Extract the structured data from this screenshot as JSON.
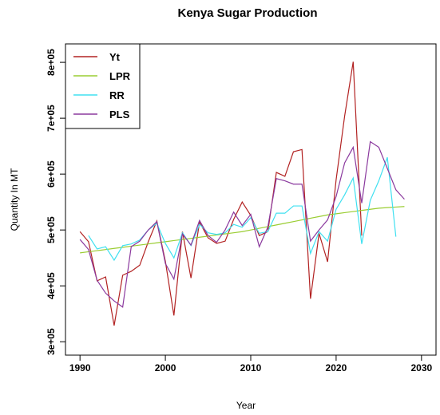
{
  "chart_data": {
    "type": "line",
    "title": "Kenya Sugar Production",
    "x_label": "Year",
    "y_label": "Quantity In MT",
    "x": [
      1990,
      1991,
      1992,
      1993,
      1994,
      1995,
      1996,
      1997,
      1998,
      1999,
      2000,
      2001,
      2002,
      2003,
      2004,
      2005,
      2006,
      2007,
      2008,
      2009,
      2010,
      2011,
      2012,
      2013,
      2014,
      2015,
      2016,
      2017,
      2018,
      2019,
      2020,
      2021,
      2022,
      2023,
      2024,
      2025,
      2026,
      2027,
      2028
    ],
    "series": [
      {
        "name": "Yt",
        "color": "#b22222",
        "values": [
          497000,
          479000,
          409000,
          416000,
          329000,
          419000,
          426000,
          437000,
          479000,
          516000,
          444000,
          347000,
          497000,
          414000,
          514000,
          486000,
          476000,
          480000,
          519000,
          550000,
          526000,
          490000,
          497000,
          603000,
          596000,
          640000,
          644000,
          377000,
          494000,
          443000,
          590000,
          704000,
          801000,
          490000,
          null,
          null,
          null,
          null,
          null
        ]
      },
      {
        "name": "LPR",
        "color": "#9acd32",
        "values": [
          459000,
          461000,
          463000,
          465000,
          467000,
          469000,
          471000,
          473000,
          475000,
          477000,
          479000,
          481000,
          483000,
          485000,
          487000,
          489000,
          491000,
          493000,
          495000,
          497000,
          500000,
          503000,
          506000,
          509000,
          512000,
          515000,
          518000,
          521000,
          524000,
          527000,
          529000,
          531000,
          533000,
          535000,
          537000,
          539000,
          540000,
          541000,
          542000
        ]
      },
      {
        "name": "RR",
        "color": "#40e0f0",
        "values": [
          null,
          490000,
          466000,
          470000,
          446000,
          472000,
          475000,
          482000,
          500000,
          512000,
          476000,
          450000,
          495000,
          472000,
          510000,
          495000,
          492000,
          495000,
          510000,
          505000,
          522000,
          494000,
          497000,
          530000,
          530000,
          543000,
          543000,
          458000,
          497000,
          480000,
          537000,
          563000,
          593000,
          475000,
          553000,
          588000,
          630000,
          488000,
          null
        ]
      },
      {
        "name": "PLS",
        "color": "#8b3a9e",
        "values": [
          483000,
          465000,
          410000,
          387000,
          373000,
          362000,
          470000,
          480000,
          500000,
          515000,
          440000,
          412000,
          493000,
          473000,
          517000,
          490000,
          478000,
          500000,
          532000,
          508000,
          528000,
          470000,
          505000,
          592000,
          588000,
          582000,
          582000,
          480000,
          500000,
          518000,
          560000,
          620000,
          648000,
          548000,
          658000,
          648000,
          610000,
          572000,
          555000
        ]
      }
    ],
    "xlim": [
      1988.3,
      2031.7
    ],
    "ylim": [
      276000,
      833000
    ],
    "xticks": [
      1990,
      2000,
      2010,
      2020,
      2030
    ],
    "yticks": [
      {
        "value": 300000,
        "label": "3e+05"
      },
      {
        "value": 400000,
        "label": "4e+05"
      },
      {
        "value": 500000,
        "label": "5e+05"
      },
      {
        "value": 600000,
        "label": "6e+05"
      },
      {
        "value": 700000,
        "label": "7e+05"
      },
      {
        "value": 800000,
        "label": "8e+05"
      }
    ],
    "legend": "top-left"
  }
}
